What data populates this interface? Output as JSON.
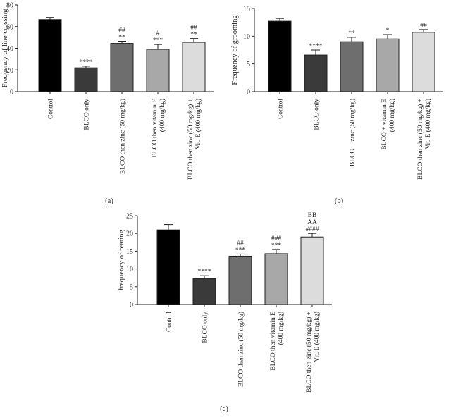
{
  "chart_data": [
    {
      "type": "bar",
      "panel_label": "(a)",
      "ylabel": "Frequency of line crossing",
      "ylim": [
        0,
        80
      ],
      "yticks": [
        0,
        20,
        40,
        60,
        80
      ],
      "categories": [
        [
          "Control"
        ],
        [
          "BLCO only"
        ],
        [
          "BLCO then zinc (50 mg/kg)"
        ],
        [
          "BLCO then vitamin E",
          "(400 mg/kg)"
        ],
        [
          "BLCO then zinc (50 mg/kg) +",
          "Vit. E (400 mg/kg)"
        ]
      ],
      "values": [
        66.5,
        22,
        44.5,
        39,
        45.5
      ],
      "errors": [
        2,
        1.5,
        2,
        4.5,
        3.5
      ],
      "colors": [
        "#000000",
        "#3a3a3a",
        "#6e6e6e",
        "#a8a8a8",
        "#dcdcdc"
      ],
      "annotations": [
        [],
        [
          "****"
        ],
        [
          "**",
          "##"
        ],
        [
          "***",
          "#"
        ],
        [
          "**",
          "##"
        ]
      ]
    },
    {
      "type": "bar",
      "panel_label": "(b)",
      "ylabel": "Frequency of grooming",
      "ylim": [
        0,
        15
      ],
      "yticks": [
        0,
        5,
        10,
        15
      ],
      "categories": [
        [
          "Control"
        ],
        [
          "BLCO only"
        ],
        [
          "BLCO + zinc (50 mg/kg)"
        ],
        [
          "BLCO + vitamin E",
          "(400 mg/kg)"
        ],
        [
          "BLCO then zinc (50 mg/kg) +",
          "Vit. E (400 mg/kg)"
        ]
      ],
      "values": [
        12.7,
        6.6,
        9,
        9.5,
        10.7
      ],
      "errors": [
        0.5,
        0.9,
        0.8,
        0.8,
        0.5
      ],
      "colors": [
        "#000000",
        "#3a3a3a",
        "#6e6e6e",
        "#a8a8a8",
        "#dcdcdc"
      ],
      "annotations": [
        [],
        [
          "****"
        ],
        [
          "**"
        ],
        [
          "*"
        ],
        [
          "##"
        ]
      ]
    },
    {
      "type": "bar",
      "panel_label": "(c)",
      "ylabel": "frequency of rearing",
      "ylim": [
        0,
        25
      ],
      "yticks": [
        0,
        5,
        10,
        15,
        20,
        25
      ],
      "categories": [
        [
          "Control"
        ],
        [
          "BLCO only"
        ],
        [
          "BLCO then zinc (50 mg/kg)"
        ],
        [
          "BLCO then vitamin E",
          "(400 mg/kg)"
        ],
        [
          "BLCO then zinc (50 mg/kg) +",
          "Vit. E (400 mg/kg)"
        ]
      ],
      "values": [
        21,
        7.3,
        13.6,
        14.3,
        19
      ],
      "errors": [
        1.5,
        0.8,
        0.6,
        1.2,
        1
      ],
      "colors": [
        "#000000",
        "#3a3a3a",
        "#6e6e6e",
        "#a8a8a8",
        "#dcdcdc"
      ],
      "annotations": [
        [],
        [
          "****"
        ],
        [
          "***",
          "##"
        ],
        [
          "***",
          "###"
        ],
        [
          "####",
          "AA",
          "BB"
        ]
      ]
    }
  ]
}
